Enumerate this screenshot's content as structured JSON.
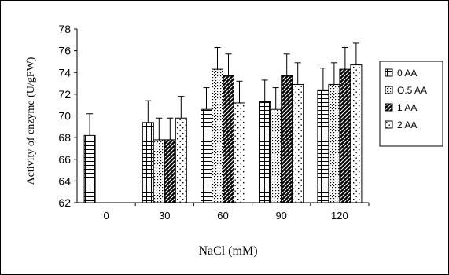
{
  "chart_data": {
    "type": "bar",
    "xlabel": "NaCl (mM)",
    "ylabel": "Activity of enzyme (U/gFW)",
    "ylim": [
      62,
      78
    ],
    "yticks": [
      "62",
      "64",
      "66",
      "68",
      "70",
      "72",
      "74",
      "76",
      "78"
    ],
    "categories": [
      "0",
      "30",
      "60",
      "90",
      "120"
    ],
    "legend_position": "right",
    "grid": false,
    "series": [
      {
        "name": "0 AA",
        "pattern": "grid-squares",
        "values": [
          68.2,
          69.4,
          70.6,
          71.3,
          72.4
        ],
        "errors": [
          2.0,
          2.0,
          2.0,
          2.0,
          2.0
        ]
      },
      {
        "name": "O.5 AA",
        "pattern": "dots",
        "values": [
          null,
          67.8,
          74.3,
          70.6,
          72.9
        ],
        "errors": [
          null,
          2.0,
          2.0,
          2.0,
          2.0
        ]
      },
      {
        "name": "1 AA",
        "pattern": "diagonal-dense",
        "values": [
          null,
          67.8,
          73.7,
          73.7,
          74.3
        ],
        "errors": [
          null,
          2.0,
          2.0,
          2.0,
          2.0
        ]
      },
      {
        "name": "2 AA",
        "pattern": "sparse-dots",
        "values": [
          null,
          69.8,
          71.2,
          72.9,
          74.7
        ],
        "errors": [
          null,
          2.0,
          2.0,
          2.0,
          2.0
        ]
      }
    ]
  }
}
